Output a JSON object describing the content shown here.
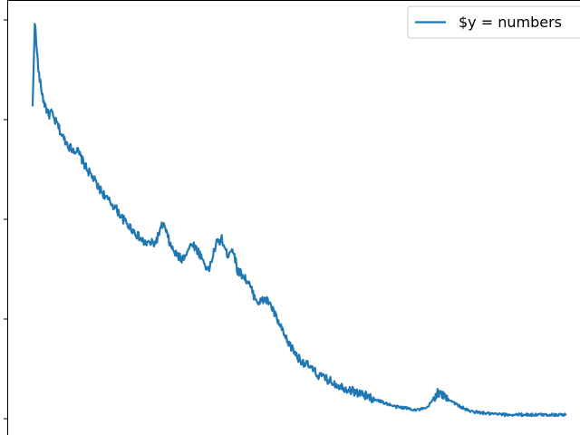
{
  "chart_data": {
    "type": "line",
    "title": "",
    "xlabel": "",
    "ylabel": "",
    "grid": false,
    "legend": "top-right",
    "xlim": [
      0,
      100
    ],
    "ylim": [
      0,
      100
    ],
    "series": [
      {
        "name": "$y = numbers",
        "color": "#1f77b4",
        "x": [
          0,
          0.4,
          0.8,
          1.2,
          2.0,
          3.0,
          3.5,
          4.0,
          4.6,
          5.5,
          7.0,
          8.5,
          10.0,
          11.5,
          12.3,
          13.0,
          14.0,
          15.5,
          17.0,
          19.0,
          21.0,
          23.0,
          24.5,
          26.0,
          27.0,
          28.0,
          29.0,
          30.0,
          31.5,
          33.0,
          34.5,
          35.5,
          36.5,
          37.5,
          38.5,
          39.5,
          40.5,
          41.5,
          42.5,
          43.5,
          44.5,
          45.5,
          46.5,
          47.5,
          48.5,
          50.0,
          52.0,
          53.5,
          55.0,
          56.5,
          58.0,
          60.0,
          62.0,
          64.0,
          66.0,
          68.0,
          70.0,
          72.0,
          74.0,
          76.0,
          78.0,
          80.0,
          82.0,
          84.0,
          86.0,
          87.5,
          88.5,
          89.5,
          90.5,
          91.5,
          92.5,
          94.0,
          96.0,
          98.0,
          100.0
        ],
        "y": [
          78,
          100,
          92,
          86,
          80,
          76,
          77,
          75,
          74,
          71,
          68,
          67,
          63,
          60,
          58,
          57,
          55,
          53,
          50,
          47,
          44,
          44,
          49,
          43,
          41,
          40,
          42,
          44,
          41,
          37,
          44,
          45,
          41,
          43,
          37,
          36,
          34,
          31,
          29,
          30,
          29,
          26,
          23,
          20,
          18,
          15,
          13,
          11,
          10,
          9,
          8,
          7,
          6,
          5,
          4,
          3,
          2.7,
          2.2,
          2.6,
          6.5,
          5,
          3.2,
          1.9,
          1.5,
          1.2,
          1.1,
          1.0,
          1.0,
          1.0,
          1.0,
          1.0,
          1.0,
          1.0,
          1.0,
          1.0
        ]
      }
    ]
  }
}
